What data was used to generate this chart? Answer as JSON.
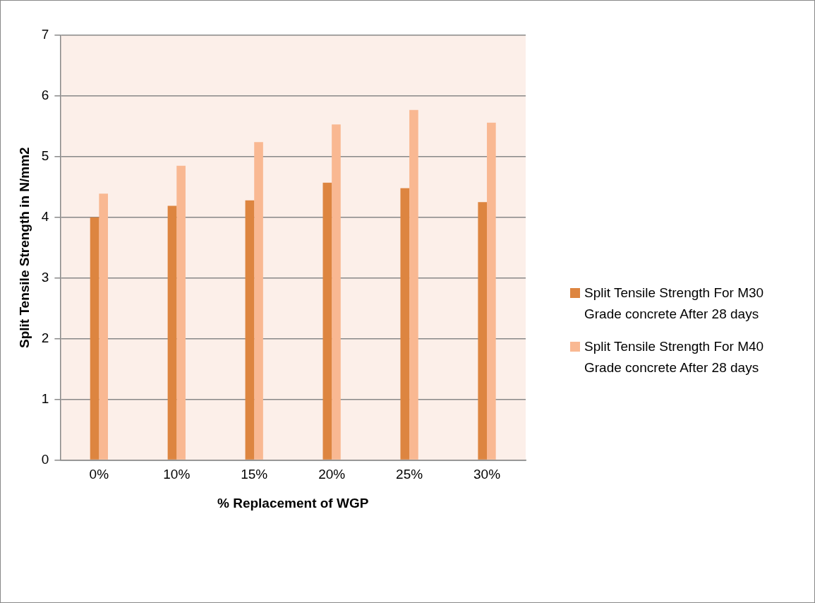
{
  "chart_data": {
    "type": "bar",
    "xlabel": "% Replacement of WGP",
    "ylabel": "Split Tensile Strength in N/mm2",
    "categories": [
      "0%",
      "10%",
      "15%",
      "20%",
      "25%",
      "30%"
    ],
    "series": [
      {
        "name": "Split Tensile Strength For M30 Grade concrete After 28 days",
        "color": "#dd8540",
        "values": [
          4.0,
          4.19,
          4.28,
          4.57,
          4.48,
          4.25
        ]
      },
      {
        "name": "Split Tensile Strength For M40 Grade concrete After 28 days",
        "color": "#f9b892",
        "values": [
          4.39,
          4.85,
          5.24,
          5.53,
          5.77,
          5.56
        ]
      }
    ],
    "ylim": [
      0,
      7
    ],
    "yticks": [
      0,
      1,
      2,
      3,
      4,
      5,
      6,
      7
    ],
    "grid": "y",
    "legend": "right"
  }
}
